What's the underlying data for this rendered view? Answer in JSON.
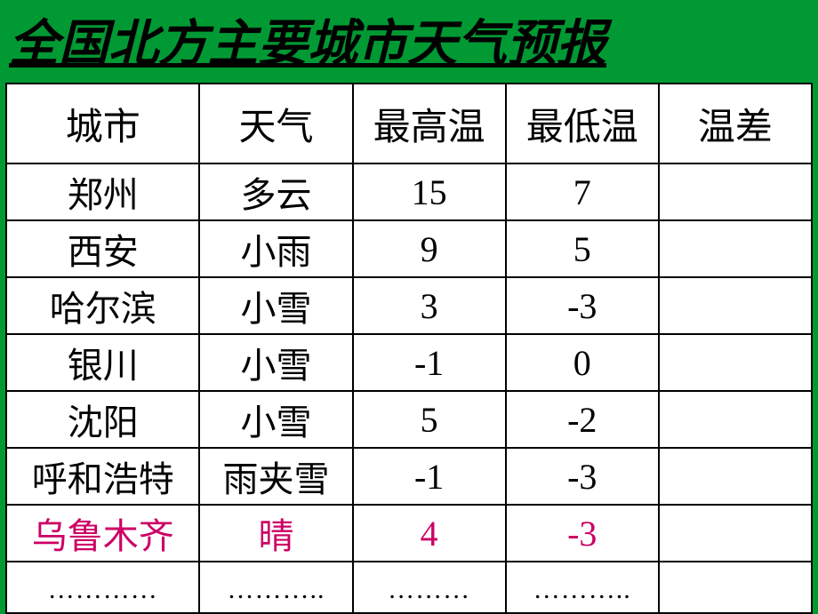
{
  "title": "全国北方主要城市天气预报",
  "headers": {
    "city": "城市",
    "weather": "天气",
    "high": "最高温",
    "low": "最低温",
    "diff": "温差"
  },
  "rows": [
    {
      "city": "郑州",
      "weather": "多云",
      "high": "15",
      "low": "7",
      "diff": "",
      "highlighted": false
    },
    {
      "city": "西安",
      "weather": "小雨",
      "high": "9",
      "low": "5",
      "diff": "",
      "highlighted": false
    },
    {
      "city": "哈尔滨",
      "weather": "小雪",
      "high": "3",
      "low": "-3",
      "diff": "",
      "highlighted": false
    },
    {
      "city": "银川",
      "weather": "小雪",
      "high": "-1",
      "low": "0",
      "diff": "",
      "highlighted": false
    },
    {
      "city": "沈阳",
      "weather": "小雪",
      "high": "5",
      "low": "-2",
      "diff": "",
      "highlighted": false
    },
    {
      "city": "呼和浩特",
      "weather": "雨夹雪",
      "high": "-1",
      "low": "-3",
      "diff": "",
      "highlighted": false
    },
    {
      "city": "乌鲁木齐",
      "weather": "晴",
      "high": "4",
      "low": "-3",
      "diff": "",
      "highlighted": true
    }
  ],
  "ellipsis_row": {
    "city": "…………",
    "weather": "………..",
    "high": "………",
    "low": "………..",
    "diff": ""
  },
  "colors": {
    "background": "#009933",
    "table_bg": "#ffffff",
    "border": "#000000",
    "text": "#000000",
    "highlight": "#cc0066"
  },
  "fonts": {
    "title_size": 56,
    "header_size": 42,
    "cell_size": 40
  }
}
